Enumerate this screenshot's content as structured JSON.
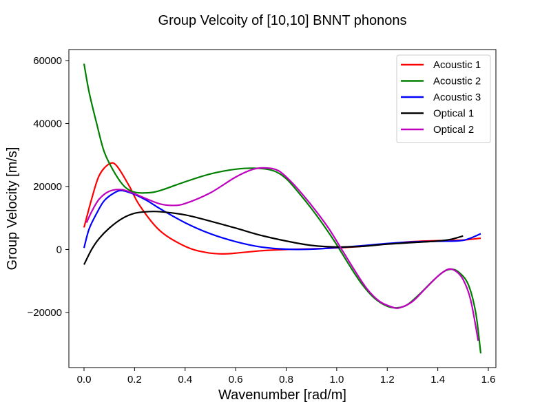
{
  "chart_data": {
    "type": "line",
    "title": "Group Velcoity of [10,10] BNNT phonons",
    "xlabel": "Wavenumber [rad/m]",
    "ylabel": "Group Velocity [m/s]",
    "xlim": [
      -0.06,
      1.63
    ],
    "ylim": [
      -37500,
      63500
    ],
    "xticks": [
      0.0,
      0.2,
      0.4,
      0.6,
      0.8,
      1.0,
      1.2,
      1.4,
      1.6
    ],
    "xtick_labels": [
      "0.0",
      "0.2",
      "0.4",
      "0.6",
      "0.8",
      "1.0",
      "1.2",
      "1.4",
      "1.6"
    ],
    "yticks": [
      -20000,
      0,
      20000,
      40000,
      60000
    ],
    "ytick_labels": [
      "−20000",
      "0",
      "20000",
      "40000",
      "60000"
    ],
    "grid": false,
    "legend_position": "top-right",
    "series": [
      {
        "name": "Acoustic 1",
        "color": "#ff0000",
        "points": [
          [
            0.0,
            7000
          ],
          [
            0.03,
            16000
          ],
          [
            0.06,
            23500
          ],
          [
            0.1,
            27200
          ],
          [
            0.13,
            26500
          ],
          [
            0.18,
            20000
          ],
          [
            0.22,
            14000
          ],
          [
            0.3,
            6000
          ],
          [
            0.4,
            1000
          ],
          [
            0.48,
            -900
          ],
          [
            0.55,
            -1400
          ],
          [
            0.62,
            -1000
          ],
          [
            0.7,
            -400
          ],
          [
            0.8,
            0
          ],
          [
            0.9,
            200
          ],
          [
            1.0,
            500
          ],
          [
            1.1,
            1000
          ],
          [
            1.2,
            1800
          ],
          [
            1.3,
            2500
          ],
          [
            1.4,
            2800
          ],
          [
            1.5,
            3000
          ],
          [
            1.57,
            3600
          ]
        ]
      },
      {
        "name": "Acoustic 2",
        "color": "#008000",
        "points": [
          [
            0.0,
            59000
          ],
          [
            0.02,
            50000
          ],
          [
            0.05,
            40000
          ],
          [
            0.08,
            31000
          ],
          [
            0.12,
            24500
          ],
          [
            0.16,
            20000
          ],
          [
            0.2,
            18200
          ],
          [
            0.25,
            18000
          ],
          [
            0.3,
            18700
          ],
          [
            0.4,
            21500
          ],
          [
            0.5,
            24000
          ],
          [
            0.6,
            25500
          ],
          [
            0.68,
            25800
          ],
          [
            0.75,
            25000
          ],
          [
            0.8,
            22500
          ],
          [
            0.85,
            18000
          ],
          [
            0.9,
            13000
          ],
          [
            0.95,
            7500
          ],
          [
            1.0,
            1500
          ],
          [
            1.05,
            -5000
          ],
          [
            1.1,
            -11000
          ],
          [
            1.15,
            -15500
          ],
          [
            1.2,
            -18000
          ],
          [
            1.24,
            -18500
          ],
          [
            1.28,
            -17500
          ],
          [
            1.33,
            -14000
          ],
          [
            1.38,
            -10000
          ],
          [
            1.42,
            -7200
          ],
          [
            1.45,
            -6300
          ],
          [
            1.48,
            -7000
          ],
          [
            1.52,
            -11000
          ],
          [
            1.55,
            -20000
          ],
          [
            1.57,
            -33000
          ]
        ]
      },
      {
        "name": "Acoustic 3",
        "color": "#0000ff",
        "points": [
          [
            0.0,
            500
          ],
          [
            0.02,
            6500
          ],
          [
            0.05,
            11500
          ],
          [
            0.08,
            15500
          ],
          [
            0.12,
            18000
          ],
          [
            0.15,
            18700
          ],
          [
            0.2,
            17500
          ],
          [
            0.25,
            15500
          ],
          [
            0.3,
            13000
          ],
          [
            0.4,
            8500
          ],
          [
            0.5,
            5000
          ],
          [
            0.6,
            2500
          ],
          [
            0.7,
            800
          ],
          [
            0.8,
            100
          ],
          [
            0.9,
            100
          ],
          [
            1.0,
            600
          ],
          [
            1.1,
            1200
          ],
          [
            1.2,
            1900
          ],
          [
            1.3,
            2400
          ],
          [
            1.4,
            2600
          ],
          [
            1.5,
            2900
          ],
          [
            1.57,
            5000
          ]
        ]
      },
      {
        "name": "Optical 1",
        "color": "#000000",
        "points": [
          [
            0.0,
            -4800
          ],
          [
            0.03,
            0
          ],
          [
            0.06,
            3500
          ],
          [
            0.1,
            6800
          ],
          [
            0.15,
            9800
          ],
          [
            0.2,
            11500
          ],
          [
            0.25,
            12000
          ],
          [
            0.3,
            12000
          ],
          [
            0.4,
            11000
          ],
          [
            0.5,
            9000
          ],
          [
            0.6,
            6800
          ],
          [
            0.7,
            4500
          ],
          [
            0.8,
            2700
          ],
          [
            0.9,
            1300
          ],
          [
            1.0,
            800
          ],
          [
            1.1,
            1000
          ],
          [
            1.2,
            1700
          ],
          [
            1.3,
            2200
          ],
          [
            1.4,
            2700
          ],
          [
            1.45,
            3200
          ],
          [
            1.5,
            4300
          ]
        ]
      },
      {
        "name": "Optical 2",
        "color": "#bf00bf",
        "points": [
          [
            0.01,
            8500
          ],
          [
            0.03,
            12000
          ],
          [
            0.06,
            16000
          ],
          [
            0.1,
            18500
          ],
          [
            0.15,
            19000
          ],
          [
            0.2,
            17700
          ],
          [
            0.25,
            16000
          ],
          [
            0.3,
            14500
          ],
          [
            0.35,
            14000
          ],
          [
            0.4,
            14600
          ],
          [
            0.5,
            18000
          ],
          [
            0.6,
            23000
          ],
          [
            0.67,
            25500
          ],
          [
            0.72,
            25900
          ],
          [
            0.77,
            25000
          ],
          [
            0.82,
            21500
          ],
          [
            0.87,
            17000
          ],
          [
            0.92,
            12000
          ],
          [
            0.97,
            6500
          ],
          [
            1.02,
            0
          ],
          [
            1.07,
            -6500
          ],
          [
            1.12,
            -12500
          ],
          [
            1.17,
            -16500
          ],
          [
            1.22,
            -18300
          ],
          [
            1.25,
            -18500
          ],
          [
            1.3,
            -16500
          ],
          [
            1.35,
            -12500
          ],
          [
            1.4,
            -8500
          ],
          [
            1.44,
            -6300
          ],
          [
            1.47,
            -6800
          ],
          [
            1.5,
            -9500
          ],
          [
            1.53,
            -16000
          ],
          [
            1.56,
            -29000
          ]
        ]
      }
    ]
  }
}
